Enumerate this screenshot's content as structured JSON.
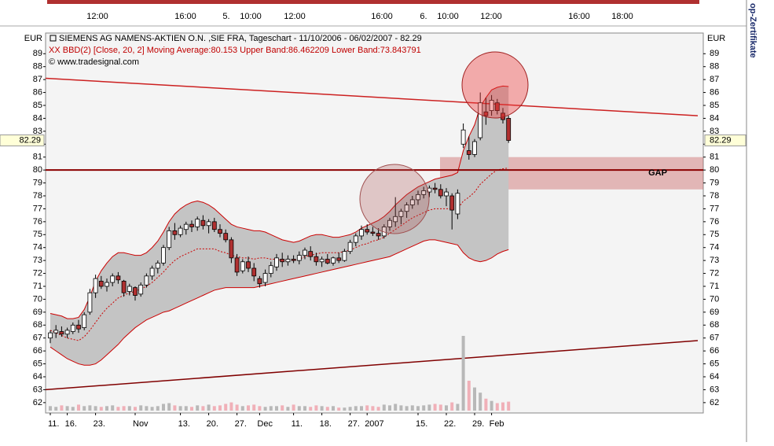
{
  "chart_data": {
    "type": "candlestick",
    "title": "SIEMENS AG NAMENS-AKTIEN O.N. ,SIE FRA, Tageschart - 11/10/2006 - 06/02/2007 - 82.29",
    "subtitle": "XX BBD(2) [Close, 20, 2] Moving Average:80.153 Upper Band:86.462209 Lower Band:73.843791",
    "source": "© www.tradesignal.com",
    "currency": "EUR",
    "side_label": "op-Zertifikate",
    "annotation": "GAP",
    "intraday_axis": [
      "12:00",
      "16:00",
      "5.",
      "10:00",
      "12:00",
      "16:00",
      "6.",
      "10:00",
      "12:00",
      "16:00",
      "18:00"
    ],
    "last": 82.29,
    "ylim": [
      61.2,
      90.6
    ],
    "yticks": [
      62,
      63,
      64,
      65,
      66,
      67,
      68,
      69,
      70,
      71,
      72,
      73,
      74,
      75,
      76,
      77,
      78,
      79,
      80,
      81,
      82,
      83,
      84,
      85,
      86,
      87,
      88,
      89
    ],
    "grid": false,
    "categories": [
      "11.",
      null,
      null,
      "16.",
      null,
      null,
      null,
      null,
      "23.",
      null,
      null,
      null,
      null,
      null,
      null,
      "Nov",
      null,
      null,
      null,
      null,
      null,
      null,
      null,
      "13.",
      null,
      null,
      null,
      null,
      "20.",
      null,
      null,
      null,
      null,
      "27.",
      null,
      null,
      null,
      "Dec",
      null,
      null,
      null,
      null,
      null,
      "11.",
      null,
      null,
      null,
      null,
      "18.",
      null,
      null,
      null,
      null,
      "27.",
      null,
      null,
      "2007",
      null,
      null,
      null,
      null,
      null,
      null,
      null,
      null,
      "15.",
      null,
      null,
      null,
      null,
      "22.",
      null,
      null,
      null,
      null,
      "29.",
      null,
      null,
      "Feb",
      null,
      null,
      null
    ],
    "candles": [
      [
        67.0,
        67.6,
        66.6,
        67.4
      ],
      [
        67.4,
        68.0,
        67.0,
        67.6
      ],
      [
        67.5,
        67.9,
        67.1,
        67.3
      ],
      [
        67.3,
        67.8,
        67.0,
        67.6
      ],
      [
        67.5,
        68.2,
        67.3,
        68.0
      ],
      [
        68.0,
        68.4,
        67.4,
        67.7
      ],
      [
        67.8,
        69.0,
        67.6,
        68.8
      ],
      [
        69.0,
        70.8,
        68.8,
        70.5
      ],
      [
        70.5,
        71.9,
        70.1,
        71.6
      ],
      [
        71.4,
        71.8,
        70.8,
        71.0
      ],
      [
        71.0,
        71.6,
        70.6,
        71.3
      ],
      [
        71.3,
        72.0,
        71.0,
        71.8
      ],
      [
        71.8,
        72.1,
        71.2,
        71.5
      ],
      [
        71.4,
        71.5,
        70.2,
        70.5
      ],
      [
        70.6,
        71.2,
        70.3,
        71.0
      ],
      [
        70.9,
        71.0,
        69.9,
        70.3
      ],
      [
        70.4,
        71.3,
        70.2,
        71.1
      ],
      [
        71.1,
        72.0,
        70.9,
        71.8
      ],
      [
        71.8,
        72.6,
        71.5,
        72.4
      ],
      [
        72.4,
        73.0,
        72.0,
        72.8
      ],
      [
        72.8,
        74.2,
        72.6,
        74.0
      ],
      [
        74.0,
        75.6,
        73.8,
        75.3
      ],
      [
        75.3,
        75.9,
        74.6,
        75.0
      ],
      [
        75.0,
        75.7,
        74.8,
        75.5
      ],
      [
        75.4,
        76.0,
        75.0,
        75.8
      ],
      [
        75.8,
        76.1,
        75.2,
        75.6
      ],
      [
        75.6,
        76.4,
        75.3,
        76.2
      ],
      [
        76.1,
        76.5,
        75.4,
        75.7
      ],
      [
        75.7,
        76.2,
        75.1,
        76.0
      ],
      [
        76.0,
        76.3,
        75.2,
        75.4
      ],
      [
        75.4,
        75.8,
        74.8,
        75.1
      ],
      [
        75.1,
        75.4,
        74.4,
        74.6
      ],
      [
        74.6,
        74.8,
        72.8,
        73.2
      ],
      [
        73.2,
        73.5,
        71.8,
        72.1
      ],
      [
        72.2,
        73.1,
        72.0,
        72.9
      ],
      [
        72.9,
        73.3,
        72.1,
        72.4
      ],
      [
        72.4,
        72.8,
        71.4,
        71.8
      ],
      [
        71.6,
        71.8,
        70.9,
        71.2
      ],
      [
        71.3,
        72.3,
        71.0,
        72.0
      ],
      [
        72.0,
        72.9,
        71.7,
        72.6
      ],
      [
        72.5,
        73.5,
        72.2,
        73.2
      ],
      [
        73.1,
        73.6,
        72.5,
        72.9
      ],
      [
        72.9,
        73.4,
        72.6,
        73.1
      ],
      [
        73.1,
        73.4,
        72.8,
        73.0
      ],
      [
        73.0,
        73.7,
        72.7,
        73.4
      ],
      [
        73.4,
        74.0,
        73.1,
        73.8
      ],
      [
        73.7,
        74.1,
        73.0,
        73.3
      ],
      [
        73.3,
        73.6,
        72.6,
        72.9
      ],
      [
        72.9,
        73.3,
        72.5,
        73.1
      ],
      [
        73.1,
        73.5,
        72.7,
        72.8
      ],
      [
        72.8,
        73.3,
        72.6,
        73.2
      ],
      [
        73.2,
        73.6,
        72.8,
        73.0
      ],
      [
        73.0,
        73.9,
        72.9,
        73.7
      ],
      [
        73.7,
        74.6,
        73.5,
        74.4
      ],
      [
        74.4,
        75.1,
        74.1,
        74.9
      ],
      [
        74.9,
        75.7,
        74.6,
        75.4
      ],
      [
        75.4,
        75.8,
        75.0,
        75.2
      ],
      [
        75.2,
        75.6,
        74.9,
        75.1
      ],
      [
        75.1,
        75.5,
        74.6,
        74.9
      ],
      [
        74.9,
        75.8,
        74.7,
        75.6
      ],
      [
        75.6,
        76.3,
        75.3,
        76.1
      ],
      [
        76.0,
        77.9,
        75.6,
        76.4
      ],
      [
        76.4,
        77.0,
        75.8,
        76.8
      ],
      [
        76.8,
        77.5,
        76.3,
        77.3
      ],
      [
        77.3,
        78.0,
        77.0,
        77.7
      ],
      [
        77.7,
        78.4,
        77.3,
        78.1
      ],
      [
        78.1,
        78.7,
        77.8,
        78.4
      ],
      [
        78.3,
        78.8,
        77.9,
        78.6
      ],
      [
        78.6,
        79.0,
        78.2,
        78.5
      ],
      [
        78.5,
        78.9,
        77.8,
        78.0
      ],
      [
        78.0,
        78.6,
        77.2,
        78.3
      ],
      [
        78.0,
        78.2,
        75.4,
        76.9
      ],
      [
        76.6,
        78.5,
        76.2,
        78.2
      ],
      [
        82.0,
        83.6,
        81.7,
        83.1
      ],
      [
        81.5,
        82.6,
        80.8,
        81.2
      ],
      [
        81.2,
        82.4,
        81.0,
        82.2
      ],
      [
        82.5,
        86.0,
        82.3,
        85.2
      ],
      [
        84.5,
        85.6,
        83.5,
        84.2
      ],
      [
        84.6,
        85.8,
        84.2,
        85.4
      ],
      [
        85.2,
        85.5,
        84.3,
        84.6
      ],
      [
        84.4,
        84.8,
        83.6,
        83.9
      ],
      [
        84.0,
        84.2,
        82.1,
        82.29
      ]
    ],
    "bands": {
      "upper": [
        68.9,
        68.8,
        68.7,
        68.5,
        68.5,
        68.6,
        69.2,
        70.2,
        71.4,
        72.2,
        72.8,
        73.3,
        73.6,
        73.6,
        73.5,
        73.4,
        73.4,
        73.6,
        74.0,
        74.5,
        75.2,
        76.0,
        76.6,
        77.0,
        77.3,
        77.5,
        77.6,
        77.5,
        77.3,
        77.0,
        76.6,
        76.2,
        75.8,
        75.6,
        75.5,
        75.4,
        75.3,
        75.3,
        75.2,
        75.0,
        74.8,
        74.6,
        74.5,
        74.4,
        74.5,
        74.7,
        74.9,
        75.0,
        75.0,
        74.9,
        74.8,
        74.8,
        74.9,
        75.0,
        75.2,
        75.5,
        75.7,
        75.9,
        76.1,
        76.4,
        76.8,
        77.3,
        77.7,
        78.1,
        78.4,
        78.7,
        78.9,
        79.1,
        79.3,
        79.4,
        79.5,
        79.6,
        79.8,
        81.5,
        82.6,
        83.5,
        84.9,
        85.6,
        86.2,
        86.4,
        86.5,
        86.46
      ],
      "lower": [
        66.3,
        66.0,
        65.7,
        65.4,
        65.2,
        65.0,
        64.9,
        64.9,
        65.0,
        65.3,
        65.7,
        66.1,
        66.5,
        67.0,
        67.4,
        67.8,
        68.1,
        68.4,
        68.6,
        68.8,
        69.0,
        69.1,
        69.3,
        69.5,
        69.7,
        69.9,
        70.1,
        70.3,
        70.5,
        70.7,
        70.8,
        70.9,
        70.9,
        70.9,
        70.9,
        70.9,
        70.9,
        71.0,
        71.1,
        71.2,
        71.3,
        71.4,
        71.5,
        71.6,
        71.7,
        71.8,
        71.9,
        72.0,
        72.1,
        72.2,
        72.3,
        72.4,
        72.5,
        72.6,
        72.7,
        72.8,
        72.9,
        73.0,
        73.1,
        73.2,
        73.3,
        73.5,
        73.7,
        73.9,
        74.1,
        74.3,
        74.5,
        74.6,
        74.6,
        74.5,
        74.4,
        74.3,
        74.2,
        73.6,
        73.2,
        73.0,
        72.9,
        73.0,
        73.2,
        73.5,
        73.7,
        73.84
      ],
      "ma": [
        67.6,
        67.4,
        67.2,
        67.0,
        66.9,
        66.8,
        67.1,
        67.6,
        68.2,
        68.8,
        69.3,
        69.7,
        70.1,
        70.3,
        70.5,
        70.6,
        70.8,
        71.0,
        71.3,
        71.7,
        72.1,
        72.6,
        73.0,
        73.3,
        73.5,
        73.7,
        73.9,
        73.9,
        73.9,
        73.9,
        73.7,
        73.6,
        73.4,
        73.3,
        73.2,
        73.2,
        73.1,
        73.2,
        73.2,
        73.1,
        73.1,
        73.0,
        73.0,
        73.0,
        73.1,
        73.3,
        73.4,
        73.5,
        73.6,
        73.6,
        73.6,
        73.6,
        73.7,
        73.8,
        74.0,
        74.2,
        74.3,
        74.5,
        74.6,
        74.8,
        75.1,
        75.4,
        75.7,
        76.0,
        76.3,
        76.5,
        76.7,
        76.9,
        77.0,
        77.0,
        77.0,
        77.0,
        77.0,
        77.6,
        77.9,
        78.3,
        78.9,
        79.3,
        79.7,
        80.0,
        80.1,
        80.153
      ],
      "color": "#cc0000",
      "fill": "#c4c4c4"
    },
    "volume": [
      0.6,
      0.5,
      0.7,
      0.6,
      0.5,
      0.8,
      0.6,
      0.7,
      0.6,
      0.5,
      0.6,
      0.7,
      0.5,
      0.6,
      0.6,
      0.5,
      0.7,
      0.6,
      0.5,
      0.6,
      0.9,
      1.0,
      0.7,
      0.6,
      0.6,
      0.5,
      0.7,
      0.6,
      0.8,
      0.6,
      0.7,
      0.9,
      1.1,
      0.8,
      0.6,
      0.7,
      0.8,
      0.6,
      0.5,
      0.6,
      0.6,
      0.7,
      0.5,
      0.8,
      0.6,
      0.6,
      0.5,
      0.7,
      0.6,
      0.5,
      0.6,
      0.4,
      0.4,
      0.5,
      0.6,
      0.6,
      0.7,
      0.6,
      0.5,
      0.8,
      0.7,
      0.9,
      0.7,
      0.6,
      0.7,
      0.6,
      0.7,
      0.8,
      0.9,
      0.8,
      0.7,
      1.1,
      0.9,
      10,
      4.0,
      3.1,
      2.4,
      1.6,
      1.3,
      1.0,
      1.1,
      1.2
    ],
    "trendlines": [
      {
        "from": 87.1,
        "to": 84.2,
        "color": "#cc2020"
      },
      {
        "from": 63.0,
        "to": 66.8,
        "color": "#800000"
      }
    ],
    "support": {
      "value": 80,
      "color": "#8b0000"
    },
    "gap_zone": [
      78.5,
      81
    ],
    "up_color": "#ffffff",
    "down_color": "#b03030"
  }
}
